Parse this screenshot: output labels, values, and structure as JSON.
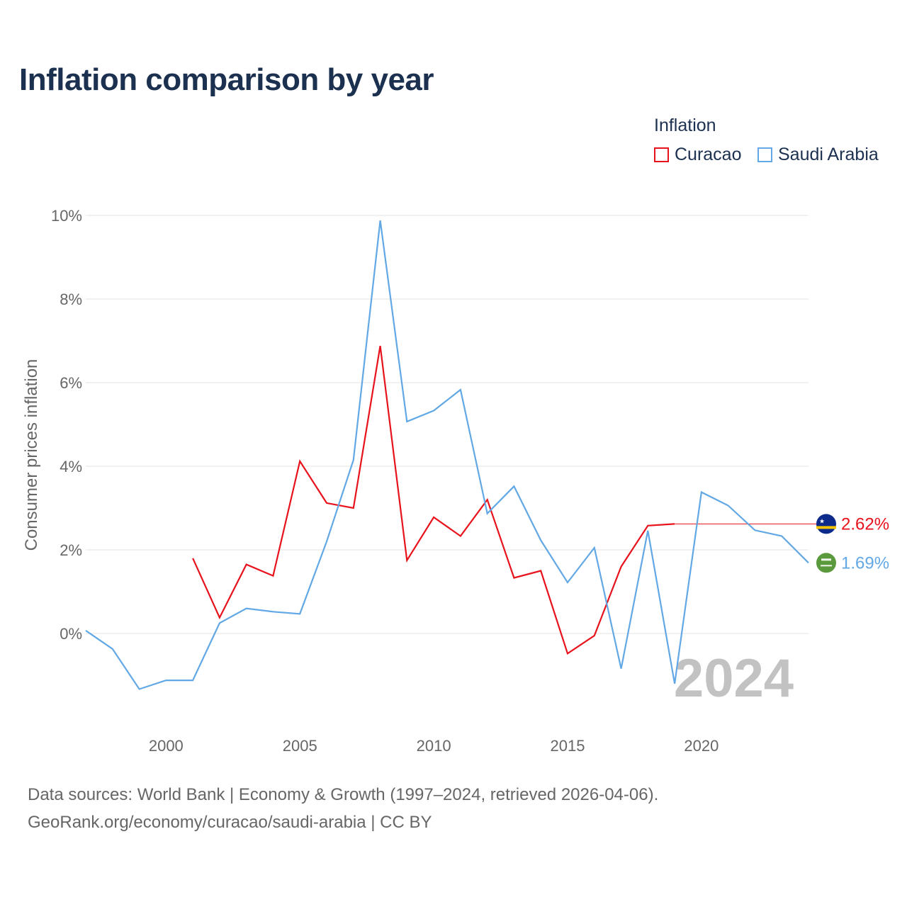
{
  "title": "Inflation comparison by year",
  "legend": {
    "title": "Inflation",
    "items": [
      {
        "label": "Curacao",
        "color": "#e8121c"
      },
      {
        "label": "Saudi Arabia",
        "color": "#62a8e5"
      }
    ]
  },
  "chart_data": {
    "type": "line",
    "title": "Inflation comparison by year",
    "xlabel": "",
    "ylabel": "Consumer prices inflation",
    "xlim": [
      1997,
      2024
    ],
    "ylim": [
      -2,
      10
    ],
    "x_ticks": [
      2000,
      2005,
      2010,
      2015,
      2020
    ],
    "y_ticks": [
      0,
      2,
      4,
      6,
      8,
      10
    ],
    "y_tick_labels": [
      "0%",
      "2%",
      "4%",
      "6%",
      "8%",
      "10%"
    ],
    "grid": true,
    "legend_position": "top-right",
    "current_year": "2024",
    "series": [
      {
        "name": "Curacao",
        "color": "#e8121c",
        "end_label": "2.62%",
        "x": [
          2001,
          2002,
          2003,
          2004,
          2005,
          2006,
          2007,
          2008,
          2009,
          2010,
          2011,
          2012,
          2013,
          2014,
          2015,
          2016,
          2017,
          2018,
          2019
        ],
        "values": [
          1.8,
          0.38,
          1.65,
          1.38,
          4.12,
          3.12,
          3.0,
          6.88,
          1.75,
          2.78,
          2.33,
          3.2,
          1.33,
          1.5,
          -0.48,
          -0.05,
          1.6,
          2.58,
          2.62
        ],
        "carry_forward_to": 2024
      },
      {
        "name": "Saudi Arabia",
        "color": "#62a8e5",
        "end_label": "1.69%",
        "x": [
          1997,
          1998,
          1999,
          2000,
          2001,
          2002,
          2003,
          2004,
          2005,
          2006,
          2007,
          2008,
          2009,
          2010,
          2011,
          2012,
          2013,
          2014,
          2015,
          2016,
          2017,
          2018,
          2019,
          2020,
          2021,
          2022,
          2023,
          2024
        ],
        "values": [
          0.07,
          -0.37,
          -1.33,
          -1.12,
          -1.12,
          0.25,
          0.6,
          0.52,
          0.47,
          2.2,
          4.15,
          9.88,
          5.07,
          5.33,
          5.83,
          2.87,
          3.52,
          2.23,
          1.22,
          2.05,
          -0.84,
          2.46,
          -1.2,
          3.38,
          3.06,
          2.47,
          2.33,
          1.69
        ]
      }
    ]
  },
  "footer": {
    "source": "Data sources: World Bank | Economy & Growth (1997–2024, retrieved 2026-04-06).",
    "link": "GeoRank.org/economy/curacao/saudi-arabia | CC BY"
  }
}
